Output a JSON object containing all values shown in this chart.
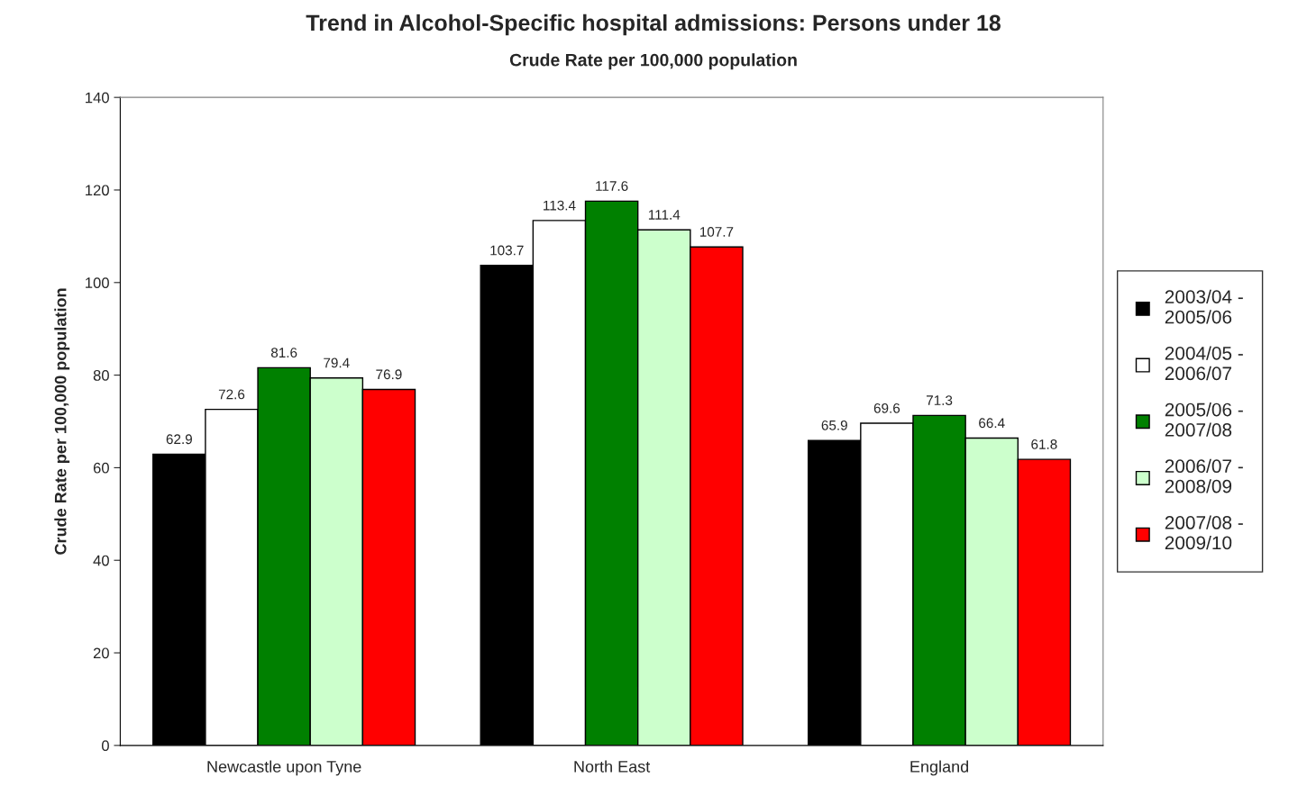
{
  "chart_data": {
    "type": "bar",
    "title": "Trend in Alcohol-Specific hospital admissions: Persons under 18",
    "subtitle": "Crude Rate per 100,000 population",
    "ylabel": "Crude Rate per 100,000 population",
    "categories": [
      "Newcastle upon Tyne",
      "North East",
      "England"
    ],
    "series": [
      {
        "name": "2003/04 -\n2005/06",
        "color": "#000000",
        "values": [
          62.9,
          103.7,
          65.9
        ]
      },
      {
        "name": "2004/05 -\n2006/07",
        "color": "#ffffff",
        "values": [
          72.6,
          113.4,
          69.6
        ]
      },
      {
        "name": "2005/06 -\n2007/08",
        "color": "#008000",
        "values": [
          81.6,
          117.6,
          71.3
        ]
      },
      {
        "name": "2006/07 -\n2008/09",
        "color": "#ccffcc",
        "values": [
          79.4,
          111.4,
          66.4
        ]
      },
      {
        "name": "2007/08 -\n2009/10",
        "color": "#ff0000",
        "values": [
          76.9,
          107.7,
          61.8
        ]
      }
    ],
    "ylim": [
      0,
      140
    ],
    "yticks": [
      0,
      20,
      40,
      60,
      80,
      100,
      120,
      140
    ],
    "grid": false,
    "legend": "right",
    "data_labels": true
  }
}
